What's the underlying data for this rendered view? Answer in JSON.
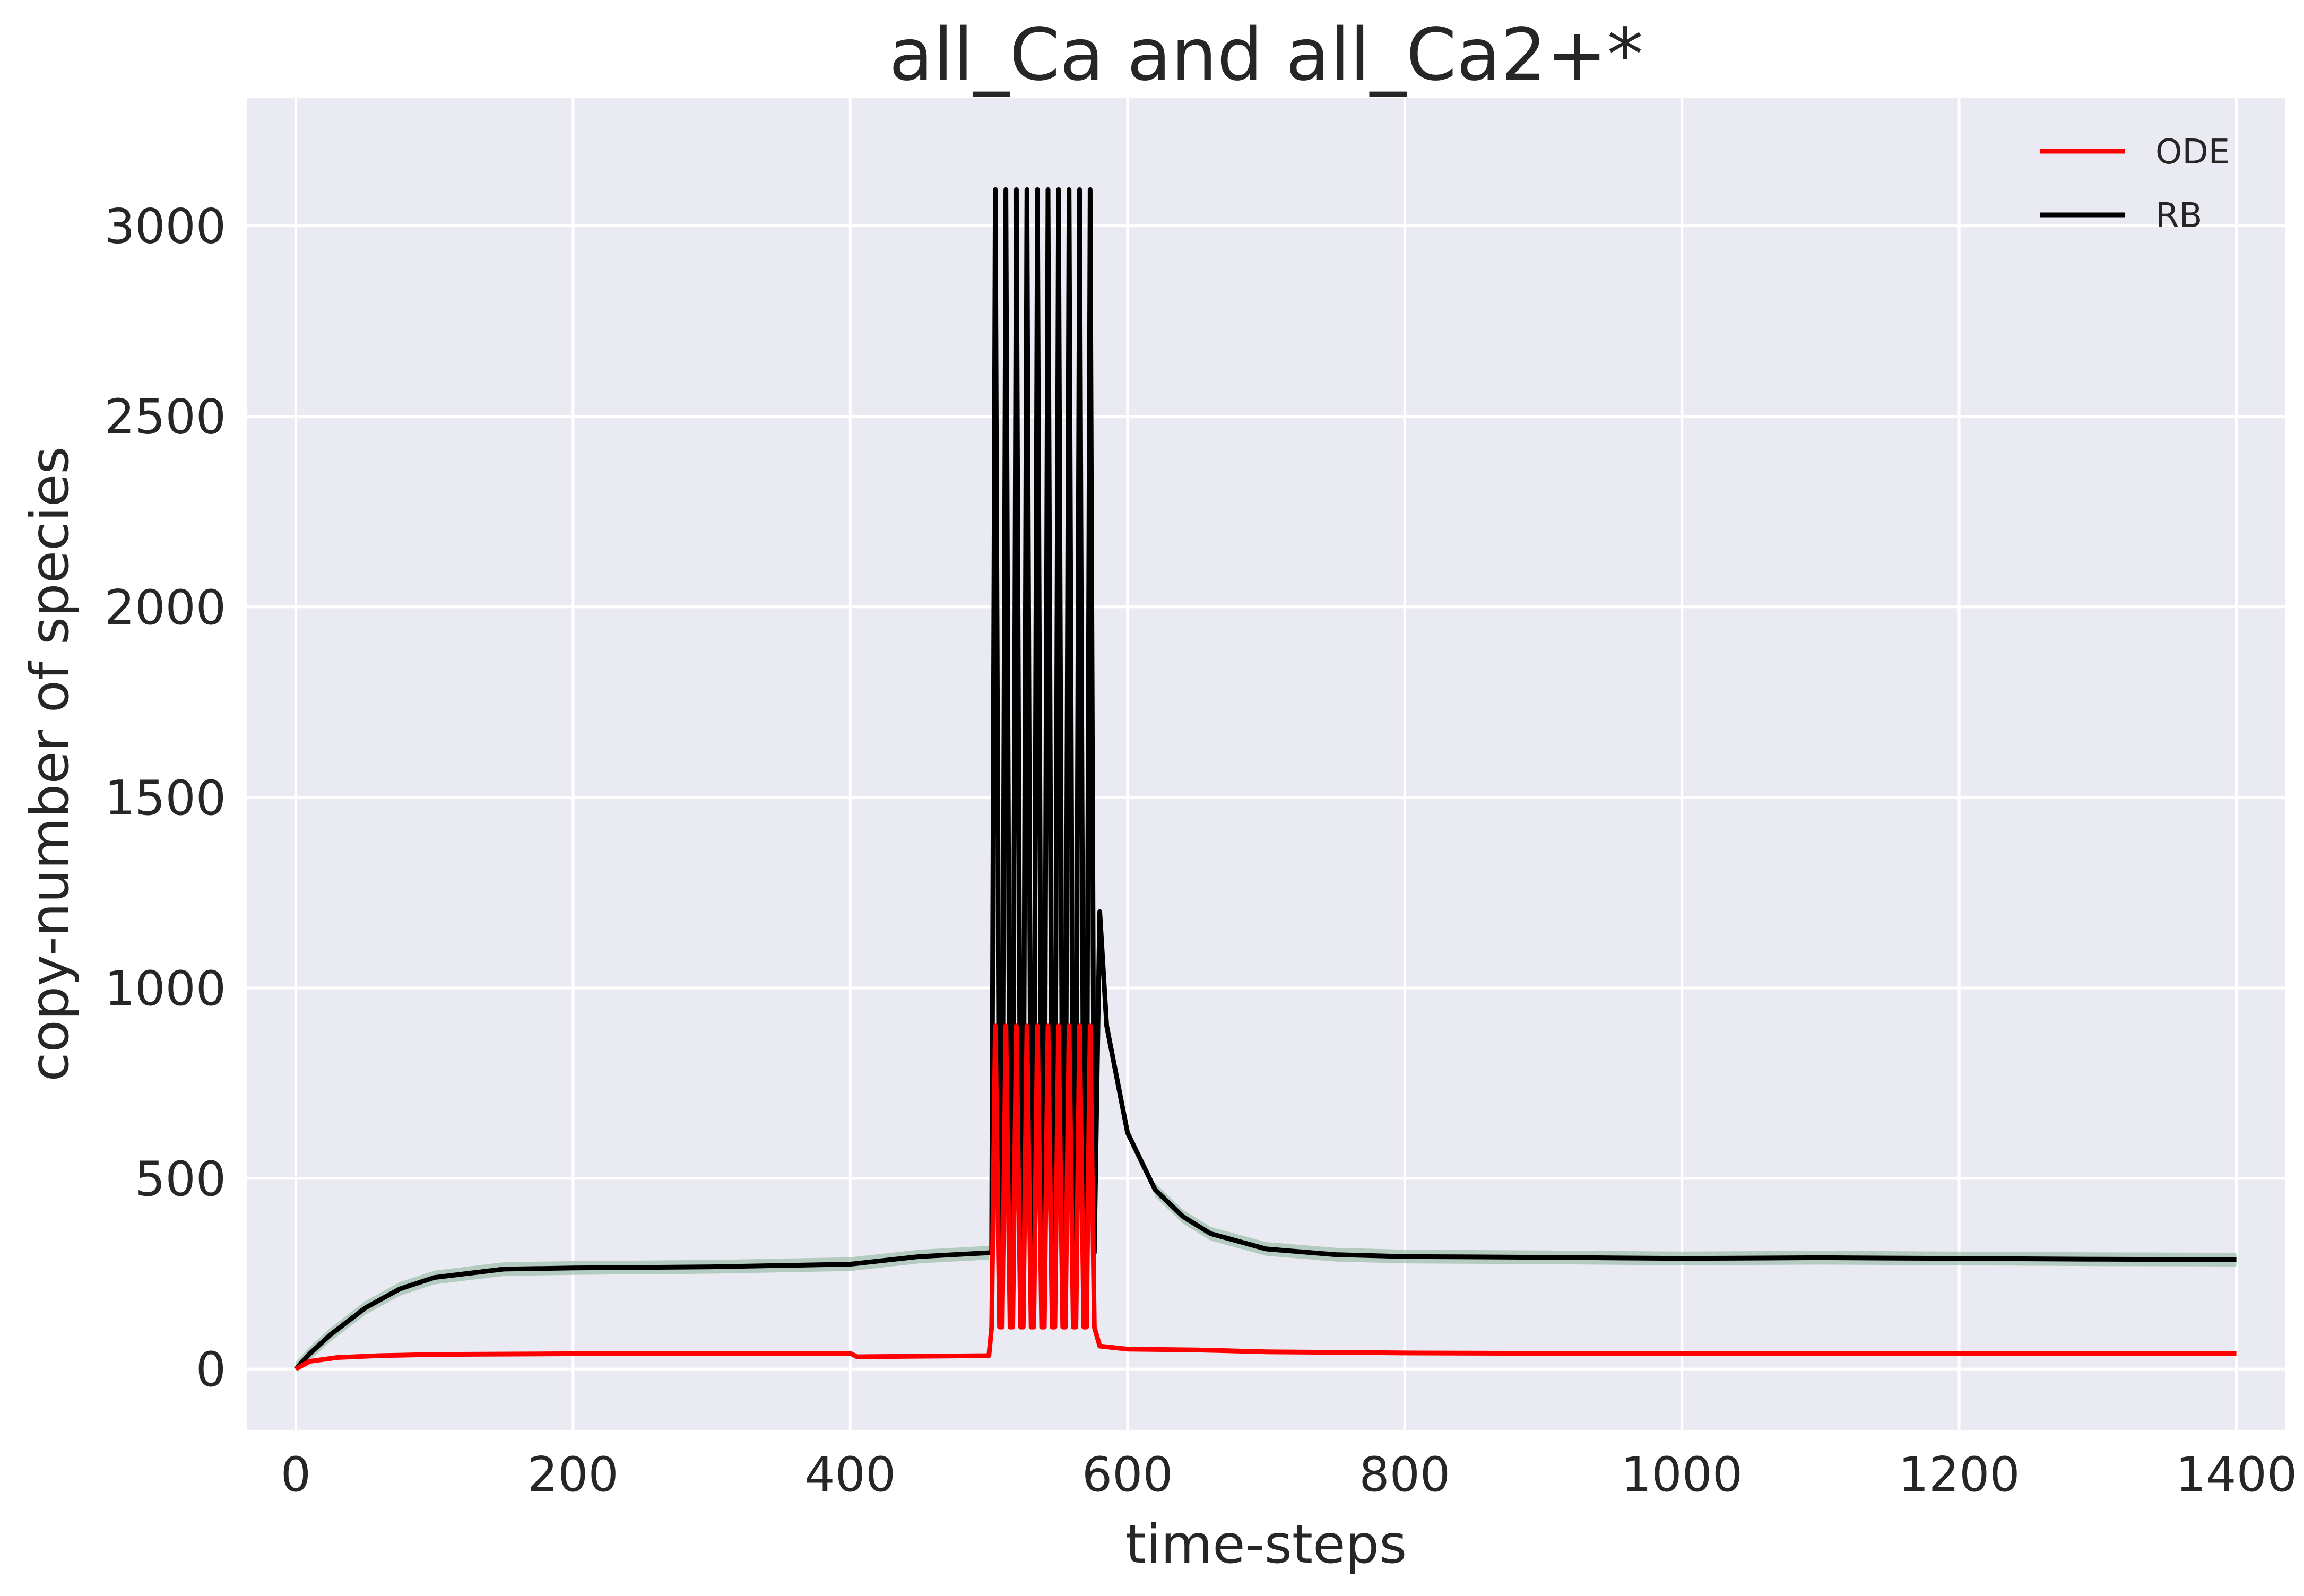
{
  "chart_data": {
    "type": "line",
    "title": "all_Ca and all_Ca2+*",
    "xlabel": "time-steps",
    "ylabel": "copy-number of species",
    "xlim": [
      -35,
      1435
    ],
    "ylim": [
      -160,
      3335
    ],
    "xticks": [
      0,
      200,
      400,
      600,
      800,
      1000,
      1200,
      1400
    ],
    "yticks": [
      0,
      500,
      1000,
      1500,
      2000,
      2500,
      3000
    ],
    "grid": true,
    "legend_position": "top-right",
    "colors": {
      "background": "#eaeaf2",
      "grid": "#ffffff",
      "band": "#8fb89c"
    },
    "series": [
      {
        "name": "ODE",
        "color": "#ff0000",
        "baseline": [
          [
            0,
            0
          ],
          [
            10,
            20
          ],
          [
            30,
            30
          ],
          [
            60,
            35
          ],
          [
            100,
            38
          ],
          [
            200,
            40
          ],
          [
            300,
            40
          ],
          [
            400,
            41
          ],
          [
            405,
            32
          ],
          [
            500,
            35
          ]
        ],
        "pulse": {
          "start": 502,
          "end": 578,
          "count": 10,
          "peak": 900,
          "trough": 110
        },
        "tail": [
          [
            580,
            60
          ],
          [
            600,
            52
          ],
          [
            650,
            50
          ],
          [
            700,
            45
          ],
          [
            800,
            42
          ],
          [
            1000,
            40
          ],
          [
            1200,
            40
          ],
          [
            1400,
            40
          ]
        ]
      },
      {
        "name": "RB",
        "color": "#000000",
        "baseline": [
          [
            0,
            0
          ],
          [
            10,
            40
          ],
          [
            25,
            90
          ],
          [
            50,
            160
          ],
          [
            75,
            210
          ],
          [
            100,
            240
          ],
          [
            150,
            262
          ],
          [
            200,
            265
          ],
          [
            300,
            268
          ],
          [
            400,
            275
          ],
          [
            450,
            295
          ],
          [
            500,
            305
          ]
        ],
        "pulse": {
          "start": 502,
          "end": 578,
          "count": 10,
          "peak": 3095,
          "trough": 305
        },
        "tail": [
          [
            580,
            1200
          ],
          [
            585,
            900
          ],
          [
            600,
            620
          ],
          [
            620,
            470
          ],
          [
            640,
            400
          ],
          [
            660,
            355
          ],
          [
            700,
            315
          ],
          [
            750,
            300
          ],
          [
            800,
            295
          ],
          [
            900,
            293
          ],
          [
            1000,
            290
          ],
          [
            1100,
            292
          ],
          [
            1200,
            290
          ],
          [
            1300,
            288
          ],
          [
            1400,
            287
          ]
        ]
      }
    ]
  }
}
